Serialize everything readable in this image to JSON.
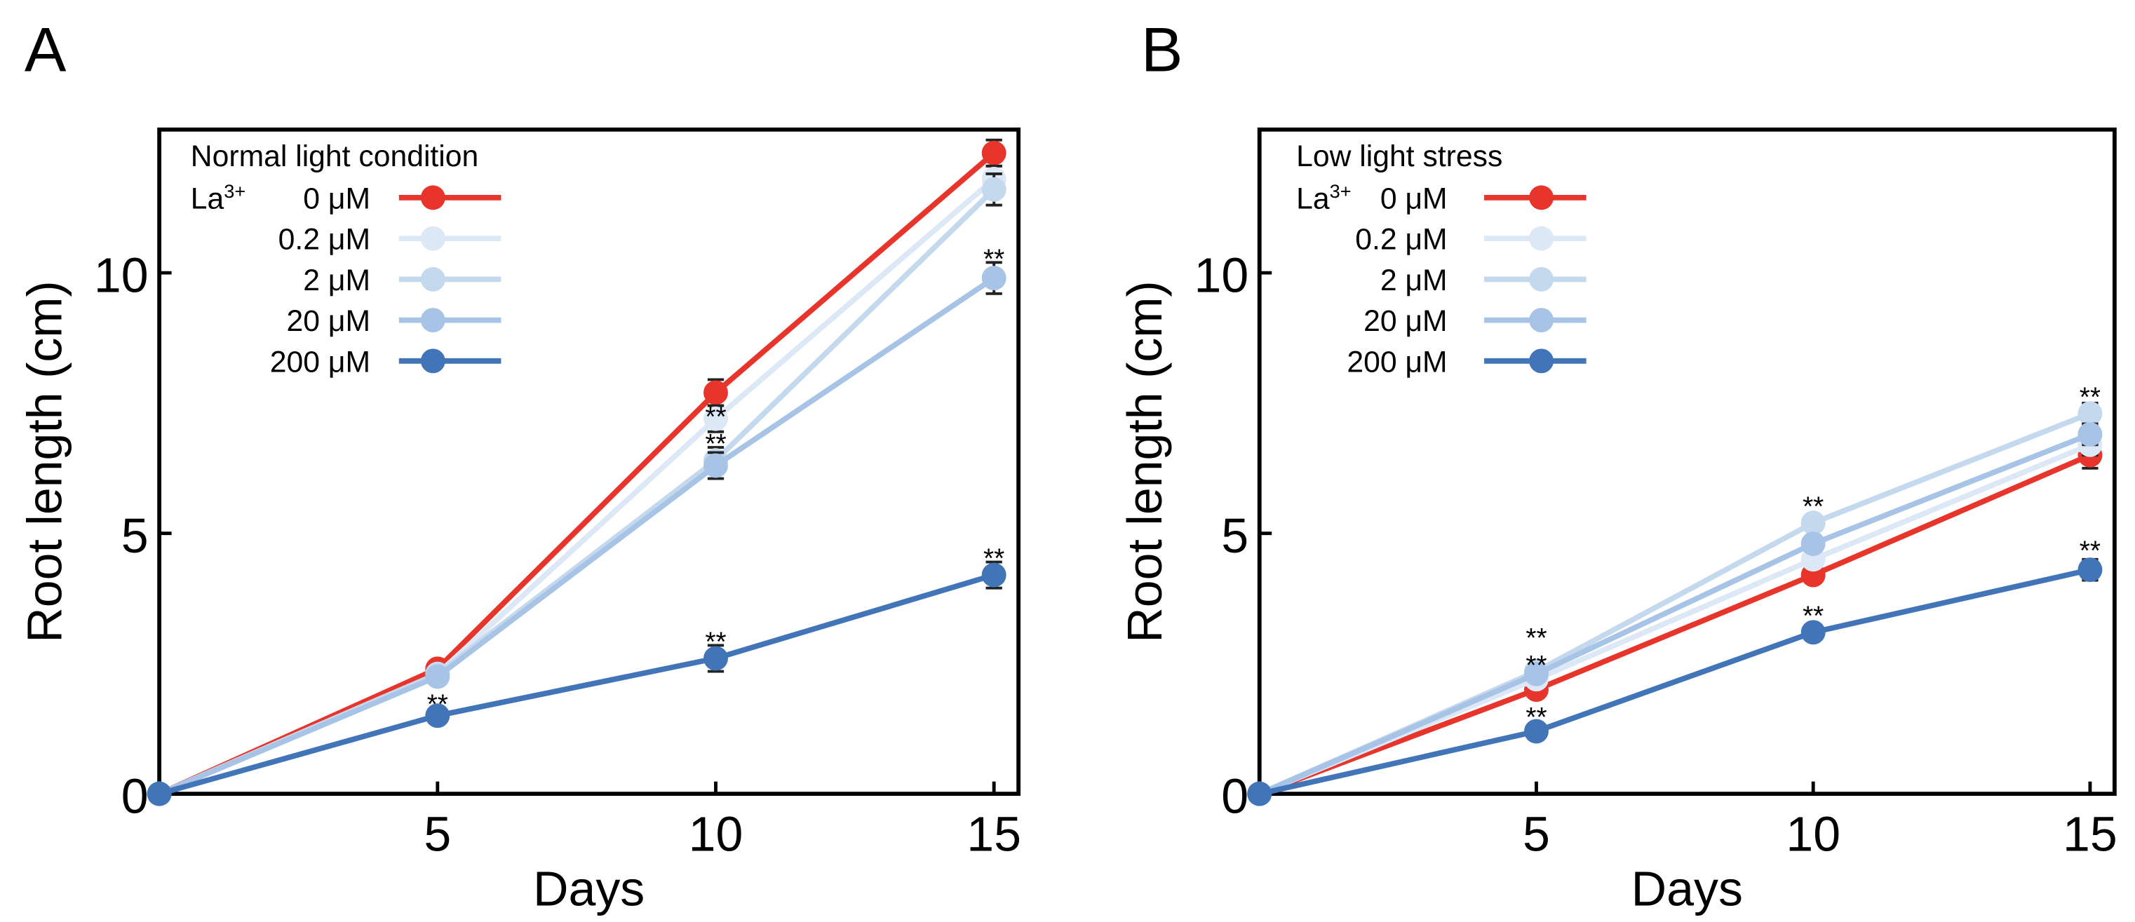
{
  "chart_data": [
    {
      "type": "line",
      "panel_label": "A",
      "legend_title": "Normal light condition",
      "legend_prefix": "La3+",
      "legend_prefix_base": "La",
      "legend_prefix_sup": "3+",
      "legend_placement": "top-left",
      "xlabel": "Days",
      "ylabel": "Root length (cm)",
      "xlim": [
        0,
        15.4
      ],
      "ylim": [
        0,
        12.75
      ],
      "xticks": [
        5,
        10,
        15
      ],
      "yticks": [
        0,
        5,
        10
      ],
      "x": [
        0,
        5,
        10,
        15
      ],
      "series": [
        {
          "name": "0 μM",
          "color": "#e8352b",
          "values": [
            0,
            2.4,
            7.7,
            12.3
          ],
          "errors": [
            0,
            0.1,
            0.25,
            0.25
          ]
        },
        {
          "name": "0.2 μM",
          "color": "#dce8f5",
          "values": [
            0,
            2.3,
            7.2,
            11.8
          ],
          "errors": [
            0,
            0.1,
            0.25,
            0.25
          ]
        },
        {
          "name": "2 μM",
          "color": "#c5d9ee",
          "values": [
            0,
            2.3,
            6.4,
            11.6
          ],
          "errors": [
            0,
            0.1,
            0.25,
            0.3
          ]
        },
        {
          "name": "20 μM",
          "color": "#a7c4e6",
          "values": [
            0,
            2.25,
            6.3,
            9.9
          ],
          "errors": [
            0,
            0.1,
            0.25,
            0.3
          ]
        },
        {
          "name": "200 μM",
          "color": "#4275b8",
          "values": [
            0,
            1.5,
            2.6,
            4.2
          ],
          "errors": [
            0,
            0.1,
            0.25,
            0.25
          ]
        }
      ],
      "annotations": [
        {
          "text": "**",
          "x": 5,
          "y": 1.75
        },
        {
          "text": "**",
          "x": 10,
          "y": 6.95
        },
        {
          "text": "**",
          "x": 10,
          "y": 6.75
        },
        {
          "text": "**",
          "x": 10,
          "y": 2.95
        },
        {
          "text": "**",
          "x": 15,
          "y": 10.3
        },
        {
          "text": "**",
          "x": 15,
          "y": 4.55
        }
      ]
    },
    {
      "type": "line",
      "panel_label": "B",
      "legend_title": "Low light stress",
      "legend_prefix": "La3+",
      "legend_prefix_base": "La",
      "legend_prefix_sup": "3+",
      "legend_placement": "top-left",
      "xlabel": "Days",
      "ylabel": "Root length (cm)",
      "xlim": [
        0,
        15.4
      ],
      "ylim": [
        0,
        12.75
      ],
      "xticks": [
        5,
        10,
        15
      ],
      "yticks": [
        0,
        5,
        10
      ],
      "x": [
        0,
        5,
        10,
        15
      ],
      "series": [
        {
          "name": "0 μM",
          "color": "#e8352b",
          "values": [
            0,
            2.0,
            4.2,
            6.5
          ],
          "errors": [
            0,
            0.1,
            0.15,
            0.25
          ]
        },
        {
          "name": "0.2 μM",
          "color": "#dce8f5",
          "values": [
            0,
            2.2,
            4.5,
            6.7
          ],
          "errors": [
            0,
            0.1,
            0.15,
            0.2
          ]
        },
        {
          "name": "2 μM",
          "color": "#c5d9ee",
          "values": [
            0,
            2.35,
            5.2,
            7.3
          ],
          "errors": [
            0,
            0.1,
            0.15,
            0.2
          ]
        },
        {
          "name": "20 μM",
          "color": "#a7c4e6",
          "values": [
            0,
            2.3,
            4.8,
            6.9
          ],
          "errors": [
            0,
            0.1,
            0.15,
            0.2
          ]
        },
        {
          "name": "200 μM",
          "color": "#4275b8",
          "values": [
            0,
            1.2,
            3.1,
            4.3
          ],
          "errors": [
            0,
            0.1,
            0.1,
            0.2
          ]
        }
      ],
      "annotations": [
        {
          "text": "**",
          "x": 5,
          "y": 2.7
        },
        {
          "text": "**",
          "x": 5,
          "y": 2.5
        },
        {
          "text": "**",
          "x": 5,
          "y": 1.5
        },
        {
          "text": "**",
          "x": 10,
          "y": 5.55
        },
        {
          "text": "**",
          "x": 10,
          "y": 3.45
        },
        {
          "text": "**",
          "x": 15,
          "y": 7.65
        },
        {
          "text": "**",
          "x": 15,
          "y": 4.7
        }
      ]
    }
  ]
}
